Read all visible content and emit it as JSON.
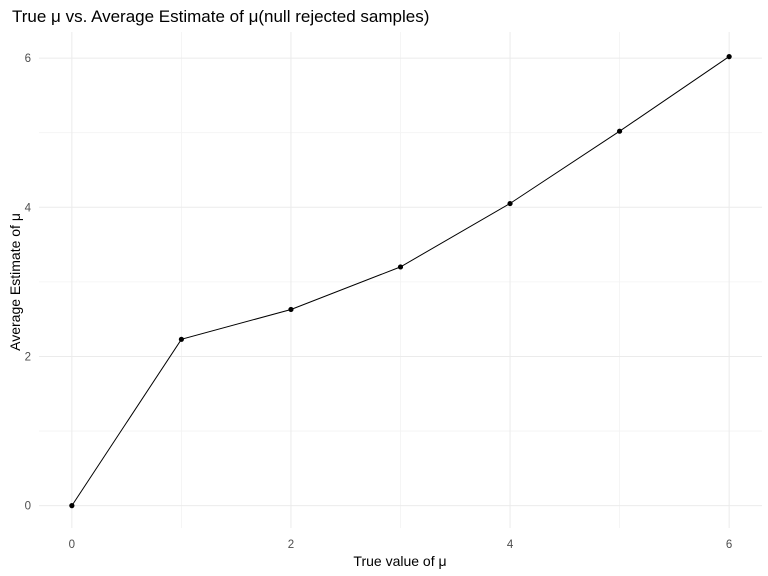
{
  "chart_data": {
    "type": "line",
    "title": "True μ vs. Average Estimate of μ(null rejected samples)",
    "xlabel": "True value of μ",
    "ylabel": "Average Estimate of μ",
    "x": [
      0,
      1,
      2,
      3,
      4,
      5,
      6
    ],
    "y": [
      0.0,
      2.23,
      2.63,
      3.2,
      4.05,
      5.02,
      6.02
    ],
    "xlim": [
      -0.3,
      6.3
    ],
    "ylim": [
      -0.3,
      6.35
    ],
    "x_ticks": [
      "0",
      "2",
      "4",
      "6"
    ],
    "y_ticks": [
      "0",
      "2",
      "4",
      "6"
    ],
    "grid": true,
    "line_color": "#000000",
    "point_color": "#000000"
  }
}
